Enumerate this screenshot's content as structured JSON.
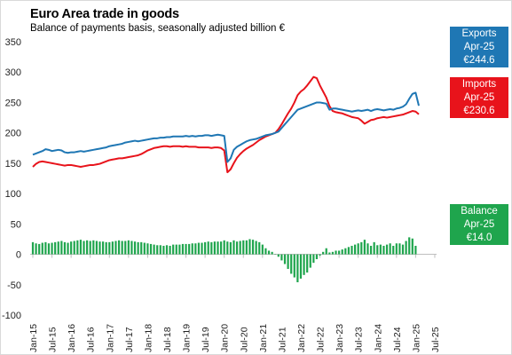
{
  "header": {
    "title": "Euro Area trade in goods",
    "subtitle": "Balance  of payments basis, seasonally adjusted billion €"
  },
  "callouts": [
    {
      "name": "Exports",
      "period": "Apr-25",
      "value": "€244.6",
      "color": "#1f77b4"
    },
    {
      "name": "Imports",
      "period": "Apr-25",
      "value": "€230.6",
      "color": "#e8131b"
    },
    {
      "name": "Balance",
      "period": "Apr-25",
      "value": "€14.0",
      "color": "#1fa54d"
    }
  ],
  "chart_data": {
    "type": "line",
    "ylim": [
      -100,
      350
    ],
    "yticks": [
      -100,
      -50,
      0,
      50,
      100,
      150,
      200,
      250,
      300,
      350
    ],
    "x_start": "Jan-15",
    "xtick_labels": [
      "Jan-15",
      "Jul-15",
      "Jan-16",
      "Jul-16",
      "Jan-17",
      "Jul-17",
      "Jan-18",
      "Jul-18",
      "Jan-19",
      "Jul-19",
      "Jan-20",
      "Jul-20",
      "Jan-21",
      "Jul-21",
      "Jan-22",
      "Jul-22",
      "Jan-23",
      "Jul-23",
      "Jan-24",
      "Jul-24",
      "Jan-25",
      "Jul-25"
    ],
    "grid": false,
    "series": [
      {
        "name": "Exports",
        "kind": "line",
        "color": "#1f77b4",
        "values": [
          164,
          166,
          168,
          170,
          173,
          172,
          170,
          171,
          172,
          171,
          168,
          167,
          168,
          168,
          169,
          170,
          169,
          170,
          171,
          172,
          173,
          174,
          175,
          176,
          178,
          179,
          180,
          181,
          182,
          184,
          185,
          186,
          187,
          186,
          187,
          188,
          189,
          190,
          191,
          191,
          192,
          192,
          193,
          193,
          194,
          194,
          194,
          194,
          195,
          194,
          195,
          194,
          195,
          195,
          196,
          196,
          195,
          196,
          197,
          196,
          195,
          152,
          158,
          172,
          177,
          180,
          183,
          186,
          188,
          189,
          190,
          192,
          194,
          196,
          197,
          198,
          200,
          202,
          208,
          214,
          220,
          226,
          232,
          238,
          240,
          242,
          244,
          246,
          248,
          250,
          250,
          249,
          248,
          238,
          240,
          240,
          239,
          238,
          237,
          236,
          235,
          236,
          237,
          236,
          237,
          238,
          236,
          238,
          239,
          238,
          237,
          238,
          239,
          238,
          240,
          241,
          243,
          247,
          256,
          264,
          266,
          244.6
        ]
      },
      {
        "name": "Imports",
        "kind": "line",
        "color": "#e8131b",
        "values": [
          144,
          149,
          152,
          153,
          152,
          151,
          150,
          149,
          148,
          147,
          146,
          147,
          147,
          146,
          145,
          144,
          145,
          146,
          147,
          147,
          148,
          149,
          151,
          153,
          155,
          156,
          157,
          158,
          158,
          159,
          160,
          161,
          162,
          163,
          165,
          168,
          171,
          173,
          175,
          176,
          177,
          178,
          178,
          177,
          178,
          178,
          178,
          177,
          178,
          177,
          177,
          177,
          176,
          176,
          176,
          176,
          175,
          176,
          176,
          175,
          171,
          135,
          140,
          150,
          159,
          165,
          170,
          174,
          177,
          180,
          184,
          188,
          191,
          194,
          196,
          198,
          200,
          206,
          214,
          223,
          232,
          240,
          250,
          262,
          268,
          272,
          278,
          285,
          292,
          290,
          278,
          268,
          258,
          244,
          236,
          234,
          233,
          232,
          230,
          228,
          226,
          225,
          224,
          220,
          215,
          218,
          221,
          222,
          224,
          225,
          226,
          225,
          226,
          227,
          228,
          229,
          230,
          232,
          234,
          236,
          235,
          230.6
        ]
      },
      {
        "name": "Balance",
        "kind": "bar",
        "color": "#1fa54d",
        "values": [
          20,
          18,
          17,
          19,
          20,
          18,
          19,
          20,
          21,
          22,
          20,
          19,
          21,
          22,
          23,
          24,
          22,
          23,
          22,
          23,
          22,
          21,
          21,
          20,
          20,
          21,
          22,
          23,
          22,
          22,
          23,
          22,
          21,
          20,
          20,
          19,
          18,
          17,
          16,
          15,
          15,
          14,
          15,
          14,
          16,
          16,
          16,
          17,
          17,
          17,
          18,
          18,
          19,
          19,
          20,
          21,
          20,
          21,
          21,
          21,
          23,
          21,
          20,
          23,
          21,
          22,
          23,
          23,
          25,
          24,
          22,
          20,
          16,
          10,
          6,
          4,
          0,
          -4,
          -10,
          -16,
          -24,
          -32,
          -38,
          -46,
          -40,
          -34,
          -30,
          -22,
          -14,
          -8,
          -2,
          4,
          10,
          3,
          4,
          6,
          6,
          8,
          10,
          12,
          14,
          16,
          18,
          20,
          24,
          18,
          14,
          20,
          15,
          16,
          14,
          16,
          18,
          14,
          18,
          18,
          16,
          22,
          28,
          26,
          14.0
        ]
      }
    ]
  }
}
